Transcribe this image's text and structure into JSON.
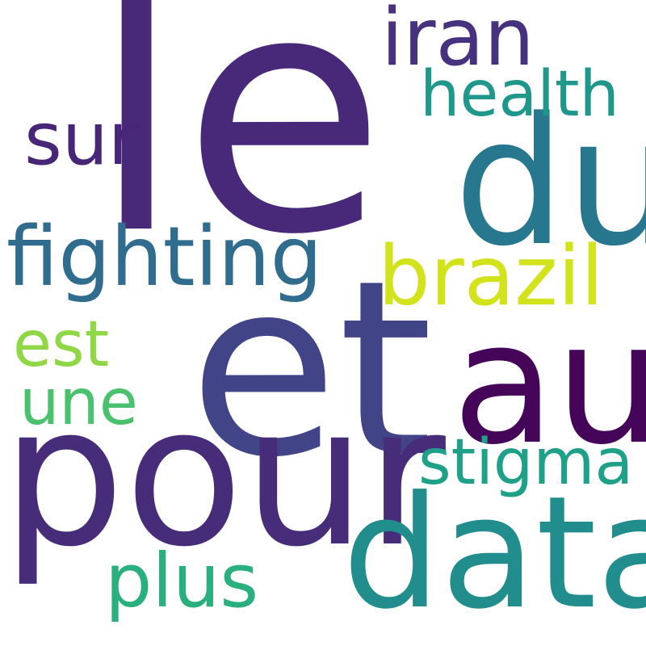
{
  "words": {
    "le": {
      "text": "le",
      "color": "#482979"
    },
    "du": {
      "text": "du",
      "color": "#27788e"
    },
    "et": {
      "text": "et",
      "color": "#414487"
    },
    "au": {
      "text": "au",
      "color": "#450559"
    },
    "pour": {
      "text": "pour",
      "color": "#472c7a"
    },
    "data": {
      "text": "data",
      "color": "#218e8d"
    },
    "fighting": {
      "text": "fighting",
      "color": "#2f6c8e"
    },
    "brazil": {
      "text": "brazil",
      "color": "#d2e21b"
    },
    "iran": {
      "text": "iran",
      "color": "#46327e"
    },
    "health": {
      "text": "health",
      "color": "#1f978b"
    },
    "sur": {
      "text": "sur",
      "color": "#482677"
    },
    "est": {
      "text": "est",
      "color": "#8fd744"
    },
    "une": {
      "text": "une",
      "color": "#4ac16d"
    },
    "stigma": {
      "text": "stigma",
      "color": "#1fa088"
    },
    "plus": {
      "text": "plus",
      "color": "#2ab07f"
    }
  }
}
